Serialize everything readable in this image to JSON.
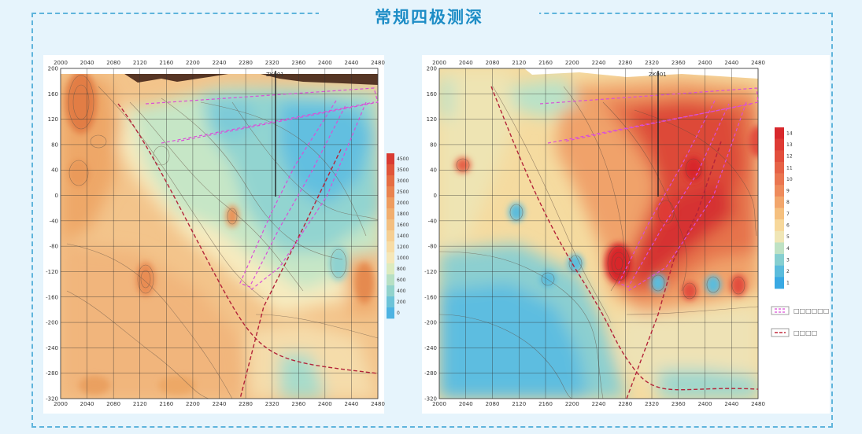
{
  "header": {
    "title": "常规四极测深"
  },
  "chart_data": [
    {
      "type": "heatmap",
      "title": "",
      "x_ticks": [
        "2000",
        "2040",
        "2080",
        "2120",
        "2160",
        "2200",
        "2240",
        "2280",
        "2320",
        "2360",
        "2400",
        "2440",
        "2480"
      ],
      "y_ticks": [
        "200",
        "160",
        "120",
        "80",
        "40",
        "0",
        "-40",
        "-80",
        "-120",
        "-160",
        "-200",
        "-240",
        "-280",
        "-320"
      ],
      "borehole_label": "ZK001",
      "colorbar": {
        "ticks": [
          "4500",
          "3500",
          "3000",
          "2500",
          "2000",
          "1800",
          "1600",
          "1400",
          "1200",
          "1000",
          "800",
          "600",
          "400",
          "200",
          "0"
        ],
        "colors": [
          "#d93b32",
          "#e0553a",
          "#e56d43",
          "#e9834f",
          "#ee9c5f",
          "#f1ae6e",
          "#f3bf80",
          "#f6cf92",
          "#f7dca5",
          "#f5e7b8",
          "#dcebbf",
          "#b7e0c4",
          "#92d3cc",
          "#6cc3d8",
          "#4db3e2"
        ]
      }
    },
    {
      "type": "heatmap",
      "title": "",
      "x_ticks": [
        "2000",
        "2040",
        "2080",
        "2120",
        "2160",
        "2200",
        "2240",
        "2280",
        "2320",
        "2360",
        "2400",
        "2440",
        "2480"
      ],
      "y_ticks": [
        "200",
        "160",
        "120",
        "80",
        "40",
        "0",
        "-40",
        "-80",
        "-120",
        "-160",
        "-200",
        "-240",
        "-280",
        "-320"
      ],
      "borehole_label": "ZK001",
      "colorbar": {
        "ticks": [
          "14",
          "13",
          "12",
          "11",
          "10",
          "9",
          "8",
          "7",
          "6",
          "5",
          "4",
          "3",
          "2",
          "1"
        ],
        "colors": [
          "#d8282c",
          "#de3a34",
          "#e24e3c",
          "#e66246",
          "#ea7651",
          "#ee8b5c",
          "#f2a66c",
          "#f5c07f",
          "#f7d89b",
          "#f0e6b6",
          "#bfe2c4",
          "#86cfd0",
          "#5bbcdc",
          "#39a9e3"
        ]
      },
      "legend": [
        {
          "symbol": "magenta-dashed-box",
          "label": "□□□□□□",
          "color": "#d94fd8"
        },
        {
          "symbol": "red-dashed-line",
          "label": "□□□□",
          "color": "#c0283c"
        }
      ]
    }
  ]
}
